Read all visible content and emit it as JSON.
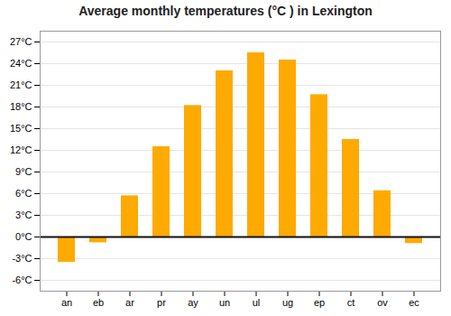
{
  "chart_data": {
    "type": "bar",
    "title": "Average monthly temperatures (°C ) in Lexington",
    "categories": [
      "an",
      "eb",
      "ar",
      "pr",
      "ay",
      "un",
      "ul",
      "ug",
      "ep",
      "ct",
      "ov",
      "ec"
    ],
    "values": [
      -3.5,
      -0.8,
      5.7,
      12.5,
      18.2,
      23.0,
      25.5,
      24.5,
      19.7,
      13.5,
      6.4,
      -0.9
    ],
    "color": "#FFAA00",
    "ylim": [
      -7.5,
      28.5
    ],
    "yticks": [
      {
        "value": -6,
        "label": "-6°C"
      },
      {
        "value": -3,
        "label": "-3°C"
      },
      {
        "value": 0,
        "label": "0°C"
      },
      {
        "value": 3,
        "label": "3°C"
      },
      {
        "value": 6,
        "label": "6°C"
      },
      {
        "value": 9,
        "label": "9°C"
      },
      {
        "value": 12,
        "label": "12°C"
      },
      {
        "value": 15,
        "label": "15°C"
      },
      {
        "value": 18,
        "label": "18°C"
      },
      {
        "value": 21,
        "label": "21°C"
      },
      {
        "value": 24,
        "label": "24°C"
      },
      {
        "value": 27,
        "label": "27°C"
      }
    ],
    "grid": true
  }
}
